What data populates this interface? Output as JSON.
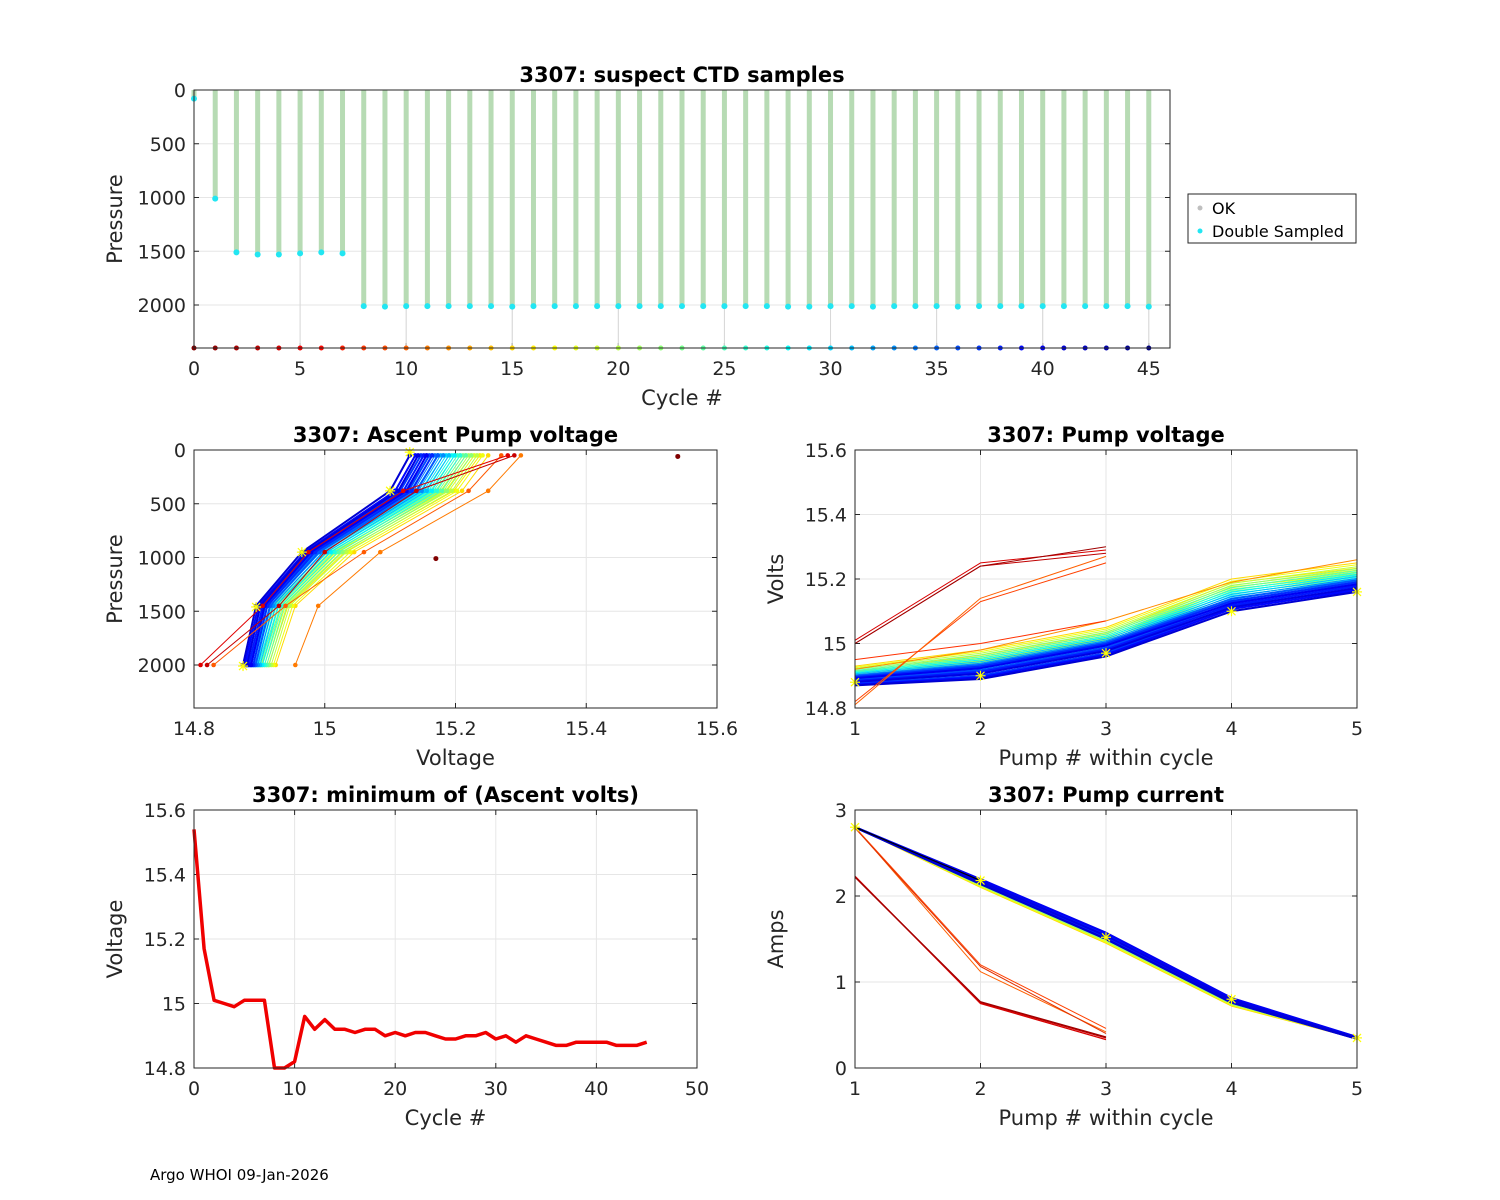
{
  "footer": "Argo WHOI 09-Jan-2026",
  "colors": {
    "ok": "#b7dbb4",
    "double_sampled": "#22e6f2",
    "min_line": "#f00000",
    "marker": "#ffff00"
  },
  "chart_data": [
    {
      "id": "suspect",
      "type": "scatter",
      "title": "3307: suspect CTD samples",
      "xlabel": "Cycle #",
      "ylabel": "Pressure",
      "xlim": [
        0,
        46
      ],
      "ylim": [
        2400,
        0
      ],
      "xticks": [
        0,
        5,
        10,
        15,
        20,
        25,
        30,
        35,
        40,
        45
      ],
      "yticks": [
        0,
        500,
        1000,
        1500,
        2000
      ],
      "legend": {
        "position": "right-outside",
        "entries": [
          "OK",
          "Double Sampled"
        ]
      },
      "cycles": [
        0,
        1,
        2,
        3,
        4,
        5,
        6,
        7,
        8,
        9,
        10,
        11,
        12,
        13,
        14,
        15,
        16,
        17,
        18,
        19,
        20,
        21,
        22,
        23,
        24,
        25,
        26,
        27,
        28,
        29,
        30,
        31,
        32,
        33,
        34,
        35,
        36,
        37,
        38,
        39,
        40,
        41,
        42,
        43,
        44,
        45
      ],
      "max_pressure": [
        80,
        1010,
        1510,
        1530,
        1530,
        1520,
        1510,
        1520,
        2010,
        2015,
        2010,
        2010,
        2010,
        2010,
        2010,
        2015,
        2010,
        2010,
        2010,
        2010,
        2010,
        2010,
        2010,
        2010,
        2010,
        2010,
        2010,
        2010,
        2015,
        2015,
        2010,
        2010,
        2015,
        2010,
        2010,
        2010,
        2015,
        2010,
        2010,
        2010,
        2010,
        2010,
        2010,
        2010,
        2010,
        2015
      ],
      "cycle_marker_pressure": 2400
    },
    {
      "id": "ascent_voltage",
      "type": "line",
      "title": "3307: Ascent Pump voltage",
      "xlabel": "Voltage",
      "ylabel": "Pressure",
      "xlim": [
        14.8,
        15.6
      ],
      "ylim": [
        2400,
        0
      ],
      "xticks": [
        14.8,
        15.0,
        15.2,
        15.4,
        15.6
      ],
      "xticklabels": [
        "14.8",
        "15",
        "15.2",
        "15.4",
        "15.6"
      ],
      "yticks": [
        0,
        500,
        1000,
        1500,
        2000
      ],
      "pressures": [
        2000,
        1450,
        950,
        380,
        50
      ],
      "blue_start": [
        [
          14.875,
          14.895,
          14.965,
          15.1,
          15.13
        ],
        [
          14.885,
          14.905,
          14.975,
          15.12,
          15.15
        ]
      ],
      "yellow_end": [
        [
          14.905,
          14.935,
          15.02,
          15.19,
          15.23
        ],
        [
          14.925,
          14.955,
          15.045,
          15.21,
          15.25
        ]
      ],
      "red_profiles": [
        [
          14.81,
          14.905,
          14.975,
          15.12,
          15.28
        ],
        [
          14.82,
          14.93,
          15.0,
          15.14,
          15.29
        ]
      ],
      "orange_profiles": [
        [
          14.83,
          14.94,
          15.06,
          15.22,
          15.27
        ],
        [
          14.955,
          14.99,
          15.085,
          15.25,
          15.3
        ]
      ],
      "outliers": [
        {
          "v": 15.54,
          "p": 60
        },
        {
          "v": 15.17,
          "p": 1010
        }
      ],
      "star_points": [
        {
          "v": 14.875,
          "p": 2010
        },
        {
          "v": 14.895,
          "p": 1460
        },
        {
          "v": 14.965,
          "p": 950
        },
        {
          "v": 15.1,
          "p": 380
        },
        {
          "v": 15.13,
          "p": 20
        }
      ]
    },
    {
      "id": "pump_voltage",
      "type": "line",
      "title": "3307: Pump voltage",
      "xlabel": "Pump # within cycle",
      "ylabel": "Volts",
      "xlim": [
        1,
        5
      ],
      "ylim": [
        14.8,
        15.6
      ],
      "xticks": [
        1,
        2,
        3,
        4,
        5
      ],
      "yticks": [
        14.8,
        15.0,
        15.2,
        15.4,
        15.6
      ],
      "yticklabels": [
        "14.8",
        "15",
        "15.2",
        "15.4",
        "15.6"
      ],
      "blue_start": [
        [
          14.87,
          14.89,
          14.96,
          15.1,
          15.16
        ],
        [
          14.89,
          14.92,
          14.99,
          15.12,
          15.18
        ]
      ],
      "yellow_end": [
        [
          14.9,
          14.95,
          15.02,
          15.18,
          15.22
        ],
        [
          14.93,
          14.98,
          15.05,
          15.2,
          15.25
        ]
      ],
      "red_3pump": [
        [
          15.0,
          15.24,
          15.28
        ],
        [
          15.01,
          15.25,
          15.29
        ],
        [
          15.0,
          15.24,
          15.3
        ]
      ],
      "orange_3pump": [
        [
          14.82,
          15.13,
          15.25
        ],
        [
          14.81,
          15.14,
          15.27
        ],
        [
          14.95,
          15.0,
          15.07
        ]
      ],
      "orange_5pump": [
        14.92,
        14.98,
        15.07,
        15.19,
        15.26
      ],
      "star_points": [
        {
          "x": 1,
          "y": 14.88
        },
        {
          "x": 2,
          "y": 14.9
        },
        {
          "x": 3,
          "y": 14.97
        },
        {
          "x": 4,
          "y": 15.1
        },
        {
          "x": 5,
          "y": 15.16
        }
      ]
    },
    {
      "id": "min_volts",
      "type": "line",
      "title": "3307: minimum of (Ascent volts)",
      "xlabel": "Cycle #",
      "ylabel": "Voltage",
      "xlim": [
        0,
        50
      ],
      "ylim": [
        14.8,
        15.6
      ],
      "xticks": [
        0,
        10,
        20,
        30,
        40,
        50
      ],
      "yticks": [
        14.8,
        15.0,
        15.2,
        15.4,
        15.6
      ],
      "yticklabels": [
        "14.8",
        "15",
        "15.2",
        "15.4",
        "15.6"
      ],
      "x": [
        0,
        1,
        2,
        3,
        4,
        5,
        6,
        7,
        8,
        9,
        10,
        11,
        12,
        13,
        14,
        15,
        16,
        17,
        18,
        19,
        20,
        21,
        22,
        23,
        24,
        25,
        26,
        27,
        28,
        29,
        30,
        31,
        32,
        33,
        34,
        35,
        36,
        37,
        38,
        39,
        40,
        41,
        42,
        43,
        44,
        45
      ],
      "values": [
        15.54,
        15.17,
        15.01,
        15.0,
        14.99,
        15.01,
        15.01,
        15.01,
        14.8,
        14.8,
        14.82,
        14.96,
        14.92,
        14.95,
        14.92,
        14.92,
        14.91,
        14.92,
        14.92,
        14.9,
        14.91,
        14.9,
        14.91,
        14.91,
        14.9,
        14.89,
        14.89,
        14.9,
        14.9,
        14.91,
        14.89,
        14.9,
        14.88,
        14.9,
        14.89,
        14.88,
        14.87,
        14.87,
        14.88,
        14.88,
        14.88,
        14.88,
        14.87,
        14.87,
        14.87,
        14.88
      ]
    },
    {
      "id": "pump_current",
      "type": "line",
      "title": "3307: Pump current",
      "xlabel": "Pump # within cycle",
      "ylabel": "Amps",
      "xlim": [
        1,
        5
      ],
      "ylim": [
        0,
        3
      ],
      "xticks": [
        1,
        2,
        3,
        4,
        5
      ],
      "yticks": [
        0,
        1,
        2,
        3
      ],
      "blue_start": [
        [
          2.8,
          2.2,
          1.58,
          0.82,
          0.36
        ],
        [
          2.8,
          2.14,
          1.5,
          0.76,
          0.34
        ]
      ],
      "yellow_end": [
        [
          2.8,
          2.1,
          1.45,
          0.72,
          0.34
        ],
        [
          2.8,
          2.16,
          1.52,
          0.79,
          0.35
        ]
      ],
      "red_3pump": [
        [
          2.22,
          0.76,
          0.35
        ],
        [
          2.23,
          0.75,
          0.33
        ],
        [
          2.22,
          0.77,
          0.36
        ]
      ],
      "orange_3pump": [
        [
          2.8,
          1.2,
          0.46
        ],
        [
          2.8,
          1.12,
          0.42
        ],
        [
          2.79,
          1.18,
          0.4
        ]
      ],
      "star_points": [
        {
          "x": 1,
          "y": 2.8
        },
        {
          "x": 2,
          "y": 2.18
        },
        {
          "x": 3,
          "y": 1.52
        },
        {
          "x": 4,
          "y": 0.8
        },
        {
          "x": 5,
          "y": 0.35
        }
      ]
    }
  ]
}
